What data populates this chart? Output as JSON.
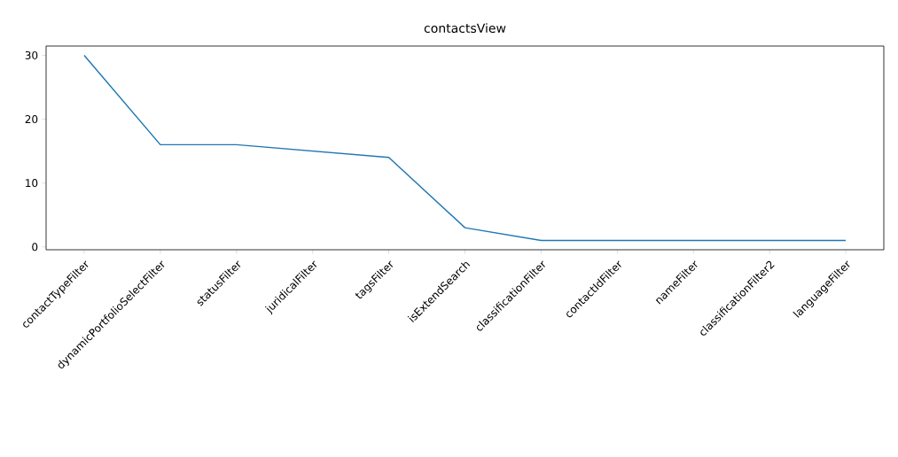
{
  "chart_data": {
    "type": "line",
    "title": "contactsView",
    "categories": [
      "contactTypeFilter",
      "dynamicPortfolioSelectFilter",
      "statusFilter",
      "juridicalFilter",
      "tagsFilter",
      "isExtendSearch",
      "classificationFilter",
      "contactIdFilter",
      "nameFilter",
      "classificationFilter2",
      "languageFilter"
    ],
    "values": [
      30,
      16,
      16,
      15,
      14,
      3,
      1,
      1,
      1,
      1,
      1
    ],
    "color": "#1f77b4",
    "ylim": [
      -0.45,
      31.45
    ],
    "yticks": [
      0,
      10,
      20,
      30
    ],
    "grid": false,
    "legend": false,
    "marker": "none",
    "line_style": "solid"
  }
}
